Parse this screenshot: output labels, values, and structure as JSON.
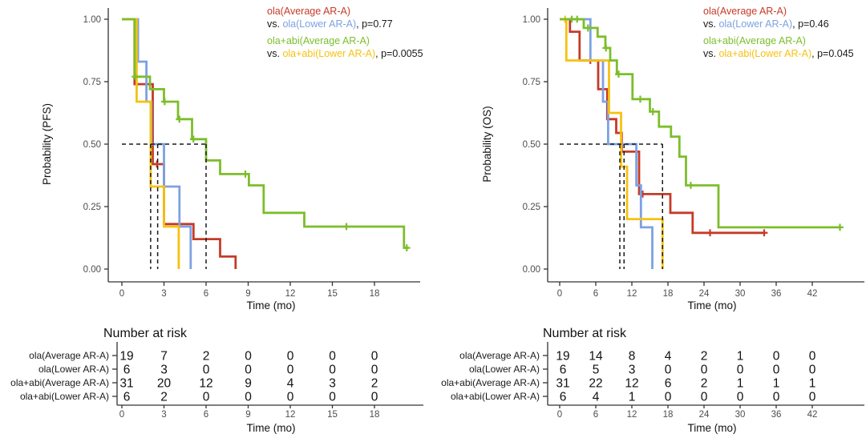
{
  "chart_data": {
    "type": "km_survival",
    "colors": {
      "red": "#C53B28",
      "blue": "#7DA1E3",
      "green": "#7CBE2B",
      "yellow": "#F5C211",
      "axis": "#333333",
      "tick_label": "#4d4d4d",
      "median_dash": "#1a1a1a",
      "text_dark": "#1a1a1a"
    },
    "panels": [
      {
        "id": "pfs",
        "y_label": "Probability (PFS)",
        "x_label": "Time (mo)",
        "y_tick_labels": [
          "1.00",
          "0.75",
          "0.50",
          "0.25",
          "0.00"
        ],
        "y_tick_values": [
          1.0,
          0.75,
          0.5,
          0.25,
          0.0
        ],
        "x_ticks": [
          0,
          3,
          6,
          9,
          12,
          15,
          18
        ],
        "x_max": 21.3,
        "legend_lines": [
          [
            {
              "t": "ola(Average AR-A)",
              "c": "red"
            }
          ],
          [
            {
              "t": "vs. "
            },
            {
              "t": "ola(Lower AR-A)",
              "c": "blue"
            },
            {
              "t": ", p=0.77"
            }
          ],
          [
            {
              "t": "ola+abi(Average AR-A)",
              "c": "green"
            }
          ],
          [
            {
              "t": "vs. "
            },
            {
              "t": "ola+abi(Lower AR-A)",
              "c": "yellow"
            },
            {
              "t": ", p=0.0055"
            }
          ]
        ],
        "median_lines": {
          "h_level": 0.5,
          "h_end": 6.0,
          "verticals": [
            2.05,
            2.55,
            6.0
          ]
        },
        "series": [
          {
            "name": "ola(Average AR-A)",
            "color": "red",
            "steps": [
              [
                0,
                1.0
              ],
              [
                0.9,
                0.74
              ],
              [
                2.2,
                0.42
              ],
              [
                3.0,
                0.18
              ],
              [
                5.1,
                0.12
              ],
              [
                7.0,
                0.05
              ],
              [
                8.1,
                0.0
              ]
            ],
            "end": 8.1,
            "censors": [
              [
                2.5,
                0.42
              ]
            ]
          },
          {
            "name": "ola(Lower AR-A)",
            "color": "blue",
            "steps": [
              [
                0,
                1.0
              ],
              [
                1.15,
                0.83
              ],
              [
                1.75,
                0.67
              ],
              [
                2.1,
                0.5
              ],
              [
                3.0,
                0.33
              ],
              [
                4.1,
                0.17
              ],
              [
                4.9,
                0.0
              ]
            ],
            "end": 4.9,
            "censors": []
          },
          {
            "name": "ola+abi(Lower AR-A)",
            "color": "yellow",
            "steps": [
              [
                0,
                1.0
              ],
              [
                1.05,
                0.67
              ],
              [
                2.05,
                0.33
              ],
              [
                3.0,
                0.17
              ],
              [
                4.05,
                0.0
              ]
            ],
            "end": 4.05,
            "censors": []
          },
          {
            "name": "ola+abi(Average AR-A)",
            "color": "green",
            "steps": [
              [
                0,
                1.0
              ],
              [
                0.9,
                0.77
              ],
              [
                2.0,
                0.72
              ],
              [
                3.0,
                0.67
              ],
              [
                4.0,
                0.6
              ],
              [
                5.0,
                0.52
              ],
              [
                6.0,
                0.435
              ],
              [
                7.0,
                0.38
              ],
              [
                9.05,
                0.335
              ],
              [
                10.1,
                0.225
              ],
              [
                13.0,
                0.17
              ],
              [
                20.1,
                0.085
              ]
            ],
            "end": 20.4,
            "censors": [
              [
                0.95,
                0.77
              ],
              [
                3.05,
                0.67
              ],
              [
                4.1,
                0.6
              ],
              [
                5.1,
                0.52
              ],
              [
                8.8,
                0.38
              ],
              [
                16.0,
                0.17
              ],
              [
                20.3,
                0.085
              ]
            ]
          }
        ],
        "risk_table": {
          "title": "Number at risk",
          "x_label": "Time (mo)",
          "x_ticks": [
            0,
            3,
            6,
            9,
            12,
            15,
            18
          ],
          "rows": [
            {
              "label": "ola(Average AR-A)",
              "color": "red",
              "counts": [
                19,
                7,
                2,
                0,
                0,
                0,
                0
              ]
            },
            {
              "label": "ola(Lower AR-A)",
              "color": "blue",
              "counts": [
                6,
                3,
                0,
                0,
                0,
                0,
                0
              ]
            },
            {
              "label": "ola+abi(Average AR-A)",
              "color": "green",
              "counts": [
                31,
                20,
                12,
                9,
                4,
                3,
                2
              ]
            },
            {
              "label": "ola+abi(Lower AR-A)",
              "color": "yellow",
              "counts": [
                6,
                2,
                0,
                0,
                0,
                0,
                0
              ]
            }
          ]
        }
      },
      {
        "id": "os",
        "y_label": "Probability (OS)",
        "x_label": "Time (mo)",
        "y_tick_labels": [
          "1.00",
          "0.75",
          "0.50",
          "0.25",
          "0.00"
        ],
        "y_tick_values": [
          1.0,
          0.75,
          0.5,
          0.25,
          0.0
        ],
        "x_ticks": [
          0,
          6,
          12,
          18,
          24,
          30,
          36,
          42
        ],
        "x_max": 50,
        "legend_lines": [
          [
            {
              "t": "ola(Average AR-A)",
              "c": "red"
            }
          ],
          [
            {
              "t": "vs. "
            },
            {
              "t": "ola(Lower AR-A)",
              "c": "blue"
            },
            {
              "t": ", p=0.46"
            }
          ],
          [
            {
              "t": "ola+abi(Average AR-A)",
              "c": "green"
            }
          ],
          [
            {
              "t": "vs. "
            },
            {
              "t": "ola+abi(Lower AR-A)",
              "c": "yellow"
            },
            {
              "t": ", p=0.045"
            }
          ]
        ],
        "median_lines": {
          "h_level": 0.5,
          "h_end": 17.1,
          "verticals": [
            10.0,
            10.7,
            17.1
          ]
        },
        "series": [
          {
            "name": "ola(Average AR-A)",
            "color": "red",
            "steps": [
              [
                0,
                1.0
              ],
              [
                1.7,
                0.95
              ],
              [
                3.3,
                0.835
              ],
              [
                6.4,
                0.72
              ],
              [
                7.9,
                0.6
              ],
              [
                9.4,
                0.545
              ],
              [
                10.3,
                0.47
              ],
              [
                13.2,
                0.3
              ],
              [
                18.4,
                0.225
              ],
              [
                22.1,
                0.145
              ]
            ],
            "end": 34.2,
            "censors": [
              [
                5.1,
                0.835
              ],
              [
                13.8,
                0.3
              ],
              [
                25.0,
                0.145
              ],
              [
                34.0,
                0.145
              ]
            ]
          },
          {
            "name": "ola(Lower AR-A)",
            "color": "blue",
            "steps": [
              [
                0,
                1.0
              ],
              [
                5.1,
                0.835
              ],
              [
                7.2,
                0.67
              ],
              [
                8.05,
                0.5
              ],
              [
                12.75,
                0.335
              ],
              [
                13.5,
                0.167
              ],
              [
                15.4,
                0.0
              ]
            ],
            "end": 15.4,
            "censors": []
          },
          {
            "name": "ola+abi(Lower AR-A)",
            "color": "yellow",
            "steps": [
              [
                0,
                1.0
              ],
              [
                1.1,
                0.835
              ],
              [
                8.2,
                0.625
              ],
              [
                10.2,
                0.41
              ],
              [
                11.2,
                0.2
              ],
              [
                17.1,
                0.0
              ]
            ],
            "end": 17.1,
            "censors": [
              [
                0.9,
                1.0
              ]
            ]
          },
          {
            "name": "ola+abi(Average AR-A)",
            "color": "green",
            "steps": [
              [
                0,
                1.0
              ],
              [
                4.0,
                0.965
              ],
              [
                6.3,
                0.93
              ],
              [
                7.6,
                0.885
              ],
              [
                8.4,
                0.835
              ],
              [
                9.5,
                0.78
              ],
              [
                12.1,
                0.68
              ],
              [
                15.0,
                0.63
              ],
              [
                16.5,
                0.57
              ],
              [
                18.5,
                0.53
              ],
              [
                19.9,
                0.45
              ],
              [
                21.0,
                0.335
              ],
              [
                26.4,
                0.167
              ]
            ],
            "end": 46.8,
            "censors": [
              [
                2.0,
                1.0
              ],
              [
                2.9,
                1.0
              ],
              [
                4.7,
                0.965
              ],
              [
                7.7,
                0.885
              ],
              [
                9.8,
                0.78
              ],
              [
                13.4,
                0.68
              ],
              [
                15.5,
                0.63
              ],
              [
                21.8,
                0.335
              ],
              [
                46.6,
                0.167
              ]
            ]
          }
        ],
        "risk_table": {
          "title": "Number at risk",
          "x_label": "Time (mo)",
          "x_ticks": [
            0,
            6,
            12,
            18,
            24,
            30,
            36,
            42
          ],
          "rows": [
            {
              "label": "ola(Average AR-A)",
              "color": "red",
              "counts": [
                19,
                14,
                8,
                4,
                2,
                1,
                0,
                0
              ]
            },
            {
              "label": "ola(Lower AR-A)",
              "color": "blue",
              "counts": [
                6,
                5,
                3,
                0,
                0,
                0,
                0,
                0
              ]
            },
            {
              "label": "ola+abi(Average AR-A)",
              "color": "green",
              "counts": [
                31,
                22,
                12,
                6,
                2,
                1,
                1,
                1
              ]
            },
            {
              "label": "ola+abi(Lower AR-A)",
              "color": "yellow",
              "counts": [
                6,
                4,
                1,
                0,
                0,
                0,
                0,
                0
              ]
            }
          ]
        }
      }
    ]
  }
}
